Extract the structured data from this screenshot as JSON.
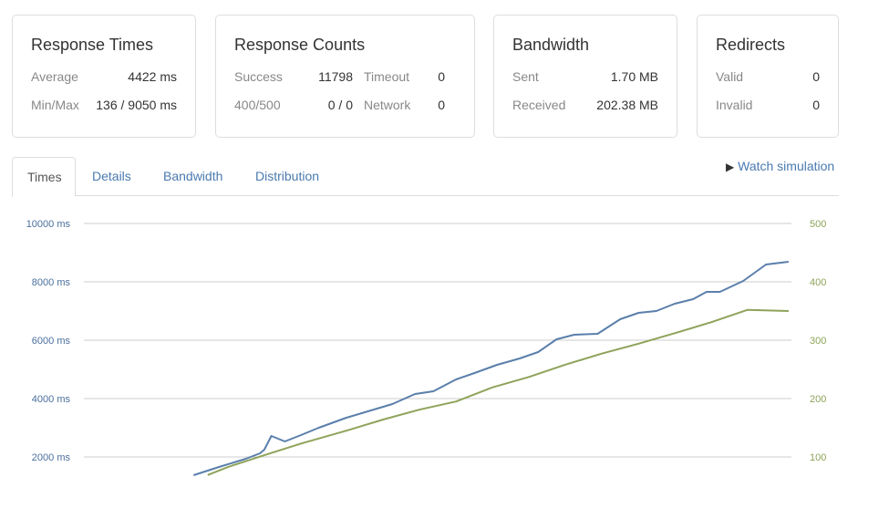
{
  "cards": {
    "response_times": {
      "title": "Response Times",
      "rows": [
        {
          "label": "Average",
          "value": "4422 ms"
        },
        {
          "label": "Min/Max",
          "value": "136 / 9050 ms"
        }
      ]
    },
    "response_counts": {
      "title": "Response Counts",
      "rows": [
        {
          "label": "Success",
          "value": "11798",
          "label2": "Timeout",
          "value2": "0"
        },
        {
          "label": "400/500",
          "value": "0 / 0",
          "label2": "Network",
          "value2": "0"
        }
      ]
    },
    "bandwidth": {
      "title": "Bandwidth",
      "rows": [
        {
          "label": "Sent",
          "value": "1.70 MB"
        },
        {
          "label": "Received",
          "value": "202.38 MB"
        }
      ]
    },
    "redirects": {
      "title": "Redirects",
      "rows": [
        {
          "label": "Valid",
          "value": "0"
        },
        {
          "label": "Invalid",
          "value": "0"
        }
      ]
    }
  },
  "tabs": [
    {
      "label": "Times",
      "active": true
    },
    {
      "label": "Details",
      "active": false
    },
    {
      "label": "Bandwidth",
      "active": false
    },
    {
      "label": "Distribution",
      "active": false
    }
  ],
  "watch_simulation": {
    "icon": "play-icon",
    "label": "Watch simulation"
  },
  "chart_data": {
    "type": "line",
    "grid": true,
    "y_left": {
      "ticks": [
        "2000 ms",
        "4000 ms",
        "6000 ms",
        "8000 ms",
        "10000 ms"
      ],
      "tick_values": [
        2000,
        4000,
        6000,
        8000,
        10000
      ],
      "range": [
        0,
        10000
      ],
      "color": "#4a6f9e"
    },
    "y_right": {
      "ticks": [
        "100",
        "200",
        "300",
        "400",
        "500"
      ],
      "tick_values": [
        100,
        200,
        300,
        400,
        500
      ],
      "range": [
        0,
        500
      ],
      "color": "#8ea35a"
    },
    "series": [
      {
        "axis": "left",
        "color": "#5a7fab",
        "points": [
          [
            15.5,
            1375
          ],
          [
            19.1,
            1656
          ],
          [
            22.9,
            1937
          ],
          [
            24.9,
            2125
          ],
          [
            25.5,
            2250
          ],
          [
            26.5,
            2719
          ],
          [
            28.4,
            2531
          ],
          [
            30.7,
            2750
          ],
          [
            33.2,
            3000
          ],
          [
            37.1,
            3344
          ],
          [
            41.0,
            3625
          ],
          [
            43.6,
            3812
          ],
          [
            46.8,
            4156
          ],
          [
            49.4,
            4250
          ],
          [
            52.6,
            4656
          ],
          [
            55.2,
            4875
          ],
          [
            58.4,
            5156
          ],
          [
            61.6,
            5375
          ],
          [
            64.2,
            5594
          ],
          [
            66.8,
            6031
          ],
          [
            69.3,
            6187
          ],
          [
            72.6,
            6219
          ],
          [
            75.8,
            6719
          ],
          [
            78.4,
            6937
          ],
          [
            80.9,
            7000
          ],
          [
            83.5,
            7250
          ],
          [
            86.1,
            7406
          ],
          [
            88.0,
            7656
          ],
          [
            89.9,
            7656
          ],
          [
            93.2,
            8031
          ],
          [
            96.4,
            8594
          ],
          [
            99.6,
            8687
          ]
        ]
      },
      {
        "axis": "right",
        "color": "#8ea35a",
        "points": [
          [
            17.5,
            69
          ],
          [
            20.4,
            83
          ],
          [
            25.5,
            103
          ],
          [
            30.7,
            123
          ],
          [
            37.1,
            145
          ],
          [
            42.3,
            164
          ],
          [
            47.4,
            181
          ],
          [
            52.6,
            195
          ],
          [
            57.7,
            219
          ],
          [
            62.9,
            237
          ],
          [
            68.0,
            258
          ],
          [
            73.2,
            277
          ],
          [
            78.4,
            294
          ],
          [
            83.5,
            312
          ],
          [
            88.7,
            331
          ],
          [
            93.8,
            352
          ],
          [
            99.6,
            350
          ]
        ]
      }
    ]
  }
}
